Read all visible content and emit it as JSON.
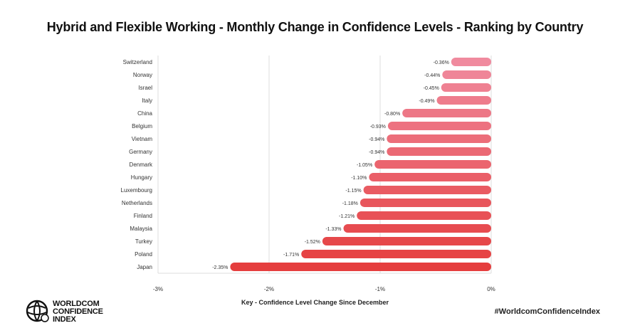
{
  "title": "Hybrid and Flexible Working - Monthly Change in Confidence Levels - Ranking by Country",
  "hashtag": "#WorldcomConfidenceIndex",
  "logo": {
    "line1": "WORLDCOM",
    "line2": "CONFIDENCE",
    "line3": "INDEX"
  },
  "chart_data": {
    "type": "bar",
    "orientation": "horizontal",
    "title": "Hybrid and Flexible Working - Monthly Change in Confidence Levels - Ranking by Country",
    "xlabel": "Key - Confidence Level Change Since December",
    "ylabel": "",
    "xlim": [
      -3,
      0
    ],
    "x_ticks": [
      -3,
      -2,
      -1,
      0
    ],
    "x_tick_labels": [
      "-3%",
      "-2%",
      "-1%",
      "0%"
    ],
    "grid": true,
    "categories": [
      "Switzerland",
      "Norway",
      "Israel",
      "Italy",
      "China",
      "Belgium",
      "Vietnam",
      "Germany",
      "Denmark",
      "Hungary",
      "Luxembourg",
      "Netherlands",
      "Finland",
      "Malaysia",
      "Turkey",
      "Poland",
      "Japan"
    ],
    "values": [
      -0.36,
      -0.44,
      -0.45,
      -0.49,
      -0.8,
      -0.93,
      -0.94,
      -0.94,
      -1.05,
      -1.1,
      -1.15,
      -1.18,
      -1.21,
      -1.33,
      -1.52,
      -1.71,
      -2.35
    ],
    "value_labels": [
      "-0.36%",
      "-0.44%",
      "-0.45%",
      "-0.49%",
      "-0.80%",
      "-0.93%",
      "-0.94%",
      "-0.94%",
      "-1.05%",
      "-1.10%",
      "-1.15%",
      "-1.18%",
      "-1.21%",
      "-1.33%",
      "-1.52%",
      "-1.71%",
      "-2.35%"
    ],
    "color_start": "#f08a9e",
    "color_end": "#e53e3e"
  }
}
